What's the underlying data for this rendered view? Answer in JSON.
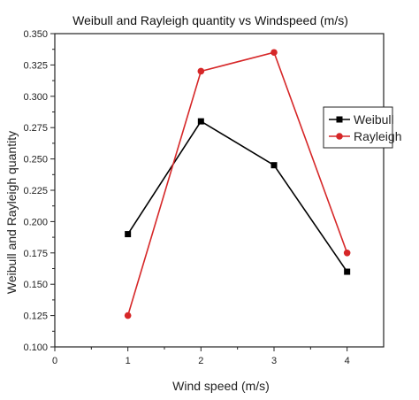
{
  "chart_data": {
    "type": "line",
    "title": "Weibull and Rayleigh quantity vs Windspeed (m/s)",
    "xlabel": "Wind speed (m/s)",
    "ylabel": "Weibull and Rayleigh quantity",
    "xlim": [
      0,
      4.5
    ],
    "ylim": [
      0.1,
      0.35
    ],
    "x_ticks": [
      0,
      1,
      2,
      3,
      4
    ],
    "x_tick_labels": [
      "0",
      "1",
      "2",
      "3",
      "4"
    ],
    "y_ticks": [
      0.1,
      0.125,
      0.15,
      0.175,
      0.2,
      0.225,
      0.25,
      0.275,
      0.3,
      0.325,
      0.35
    ],
    "y_tick_labels": [
      "0.100",
      "0.125",
      "0.150",
      "0.175",
      "0.200",
      "0.225",
      "0.250",
      "0.275",
      "0.300",
      "0.325",
      "0.350"
    ],
    "grid": false,
    "legend_position": "top-right",
    "x": [
      1,
      2,
      3,
      4
    ],
    "series": [
      {
        "name": "Weibull",
        "values": [
          0.19,
          0.28,
          0.245,
          0.16
        ],
        "color": "#000000",
        "marker": "square"
      },
      {
        "name": "Rayleigh",
        "values": [
          0.125,
          0.32,
          0.335,
          0.175
        ],
        "color": "#d62728",
        "marker": "circle"
      }
    ]
  }
}
